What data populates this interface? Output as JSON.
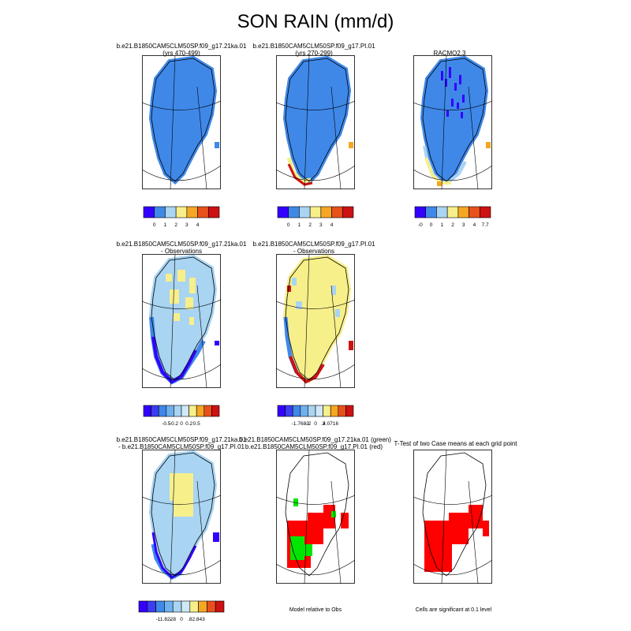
{
  "title": "SON RAIN (mm/d)",
  "colors": {
    "dark_blue": "#3300ff",
    "mid_blue": "#3f88e8",
    "light_blue": "#a9d4f2",
    "pale_blue": "#cfe8f7",
    "yellow": "#f7ef8a",
    "orange": "#f5a623",
    "red_orange": "#e8511c",
    "red": "#cc1212",
    "green": "#00e600",
    "bright_red": "#ff0000"
  },
  "panels": [
    {
      "id": "p1",
      "title_lines": [
        "b.e21.B1850CAM5CLM50SP.f09_g17.21ka.01",
        "(yrs 470-499)"
      ]
    },
    {
      "id": "p2",
      "title_lines": [
        "b.e21.B1850CAM5CLM50SP.f09_g17.PI.01",
        "(yrs 270-299)"
      ]
    },
    {
      "id": "p3",
      "title_lines": [
        "RACMO2.3"
      ]
    },
    {
      "id": "p4",
      "title_lines": [
        "b.e21.B1850CAM5CLM50SP.f09_g17.21ka.01",
        "- Observations"
      ]
    },
    {
      "id": "p5",
      "title_lines": [
        "b.e21.B1850CAM5CLM50SP.f09_g17.PI.01",
        "- Observations"
      ]
    },
    {
      "id": "p7",
      "title_lines": [
        "b.e21.B1850CAM5CLM50SP.f09_g17.21ka.01",
        "- b.e21.B1850CAM5CLM50SP.f09_g17.PI.01"
      ]
    },
    {
      "id": "p8",
      "title_lines": [
        "b.e21.B1850CAM5CLM50SP.f09_g17.21ka.01 (green)",
        "b.e21.B1850CAM5CLM50SP.f09_g17.PI.01 (red)"
      ]
    },
    {
      "id": "p9",
      "title_lines": [
        "T-Test of two Case means at each grid point"
      ]
    }
  ],
  "colorbars": [
    {
      "id": "cb1",
      "labels": [
        "0",
        "1",
        "2",
        "3",
        "4"
      ],
      "colors": [
        "#3300ff",
        "#3f88e8",
        "#a9d4f2",
        "#f7ef8a",
        "#f5a623",
        "#e8511c",
        "#cc1212"
      ]
    },
    {
      "id": "cb2",
      "labels": [
        "0",
        "1",
        "2",
        "3",
        "4"
      ],
      "colors": [
        "#3300ff",
        "#3f88e8",
        "#a9d4f2",
        "#f7ef8a",
        "#f5a623",
        "#e8511c",
        "#cc1212"
      ]
    },
    {
      "id": "cb3",
      "labels": [
        "-0",
        "0",
        "1",
        "2",
        "3",
        "4",
        "7.7"
      ],
      "colors": [
        "#3300ff",
        "#3f88e8",
        "#a9d4f2",
        "#f7ef8a",
        "#f5a623",
        "#e8511c",
        "#cc1212"
      ]
    },
    {
      "id": "cb4",
      "labels": [
        "-0.5",
        "-0.2",
        "0",
        "0.2",
        "0.5"
      ],
      "colors": [
        "#3300ff",
        "#3c3cf0",
        "#3f88e8",
        "#6fb0ee",
        "#a9d4f2",
        "#cfe8f7",
        "#f7ef8a",
        "#f5a623",
        "#e8511c",
        "#cc1212"
      ]
    },
    {
      "id": "cb5",
      "labels": [
        "-1.7683",
        "-.2",
        "0",
        ".2",
        "4.0716"
      ],
      "colors": [
        "#3300ff",
        "#3c3cf0",
        "#3f88e8",
        "#6fb0ee",
        "#a9d4f2",
        "#cfe8f7",
        "#f7ef8a",
        "#f5a623",
        "#e8511c",
        "#cc1212"
      ]
    },
    {
      "id": "cb7",
      "labels": [
        "-11.822",
        "-.8",
        "0",
        ".8",
        "2.843"
      ],
      "colors": [
        "#3300ff",
        "#3c3cf0",
        "#3f88e8",
        "#6fb0ee",
        "#a9d4f2",
        "#cfe8f7",
        "#f7ef8a",
        "#f5a623",
        "#e8511c",
        "#cc1212"
      ]
    }
  ],
  "notes": {
    "model_relative": "Model relative to Obs",
    "significance": "Cells are significant at 0.1 level"
  },
  "chart_data": [
    {
      "type": "heatmap",
      "title": "b.e21.B1850CAM5CLM50SP.f09_g17.21ka.01 (yrs 470-499)",
      "description_of_field": "mostly 0-1 mm/d over Greenland",
      "colorbar_levels": [
        0,
        1,
        2,
        3,
        4
      ]
    },
    {
      "type": "heatmap",
      "title": "b.e21.B1850CAM5CLM50SP.f09_g17.PI.01 (yrs 270-299)",
      "colorbar_levels": [
        0,
        1,
        2,
        3,
        4
      ]
    },
    {
      "type": "heatmap",
      "title": "RACMO2.3",
      "colorbar_levels": [
        0,
        0,
        1,
        2,
        3,
        4,
        7.7
      ]
    },
    {
      "type": "heatmap",
      "title": "b.e21.B1850CAM5CLM50SP.f09_g17.21ka.01 - Observations",
      "colorbar_levels": [
        -0.5,
        -0.2,
        0,
        0.2,
        0.5
      ]
    },
    {
      "type": "heatmap",
      "title": "b.e21.B1850CAM5CLM50SP.f09_g17.PI.01 - Observations",
      "colorbar_levels": [
        -1.7683,
        -0.2,
        0,
        0.2,
        4.0716
      ]
    },
    {
      "type": "heatmap",
      "title": "b.e21.B1850CAM5CLM50SP.f09_g17.21ka.01 - b.e21.B1850CAM5CLM50SP.f09_g17.PI.01",
      "colorbar_levels": [
        -11.822,
        -0.8,
        0,
        0.8,
        2.843
      ]
    },
    {
      "type": "heatmap",
      "title": "b.e21.B1850CAM5CLM50SP.f09_g17.21ka.01 (green) b.e21.B1850CAM5CLM50SP.f09_g17.PI.01 (red)",
      "caption": "Model relative to Obs"
    },
    {
      "type": "heatmap",
      "title": "T-Test of two Case means at each grid point",
      "caption": "Cells are significant at 0.1 level"
    }
  ]
}
